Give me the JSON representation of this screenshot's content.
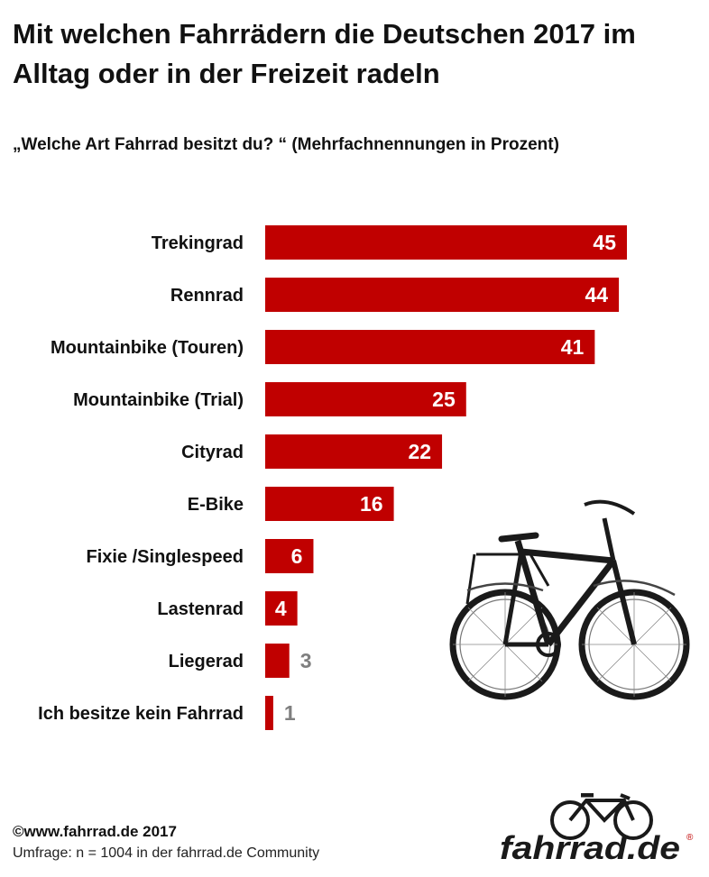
{
  "title": "Mit welchen Fahrrädern die Deutschen 2017 im Alltag oder in der Freizeit radeln",
  "subtitle": "„Welche Art Fahrrad  besitzt du? “ (Mehrfachnennungen in Prozent)",
  "footer": {
    "copyright": "©www.fahrrad.de 2017",
    "survey": "Umfrage: n = 1004 in der fahrrad.de Community"
  },
  "logo": {
    "text": "fahrrad.de",
    "registered": "®",
    "icon": "bicycle-icon"
  },
  "illustration": {
    "icon": "trekking-bike-icon"
  },
  "colors": {
    "bar": "#C00000",
    "label_inside": "#ffffff",
    "label_outside": "#7f7f7f",
    "text": "#111111"
  },
  "chart_data": {
    "type": "bar",
    "orientation": "horizontal",
    "categories": [
      "Trekingrad",
      "Rennrad",
      "Mountainbike (Touren)",
      "Mountainbike (Trial)",
      "Cityrad",
      "E-Bike",
      "Fixie /Singlespeed",
      "Lastenrad",
      "Liegerad",
      "Ich besitze kein Fahrrad"
    ],
    "values": [
      45,
      44,
      41,
      25,
      22,
      16,
      6,
      4,
      3,
      1
    ],
    "data_labels": [
      "45",
      "44",
      "41",
      "25",
      "22",
      "16",
      "6",
      "4",
      "3",
      "1"
    ],
    "xlim": [
      0,
      45
    ],
    "grid": false,
    "legend": "none"
  }
}
